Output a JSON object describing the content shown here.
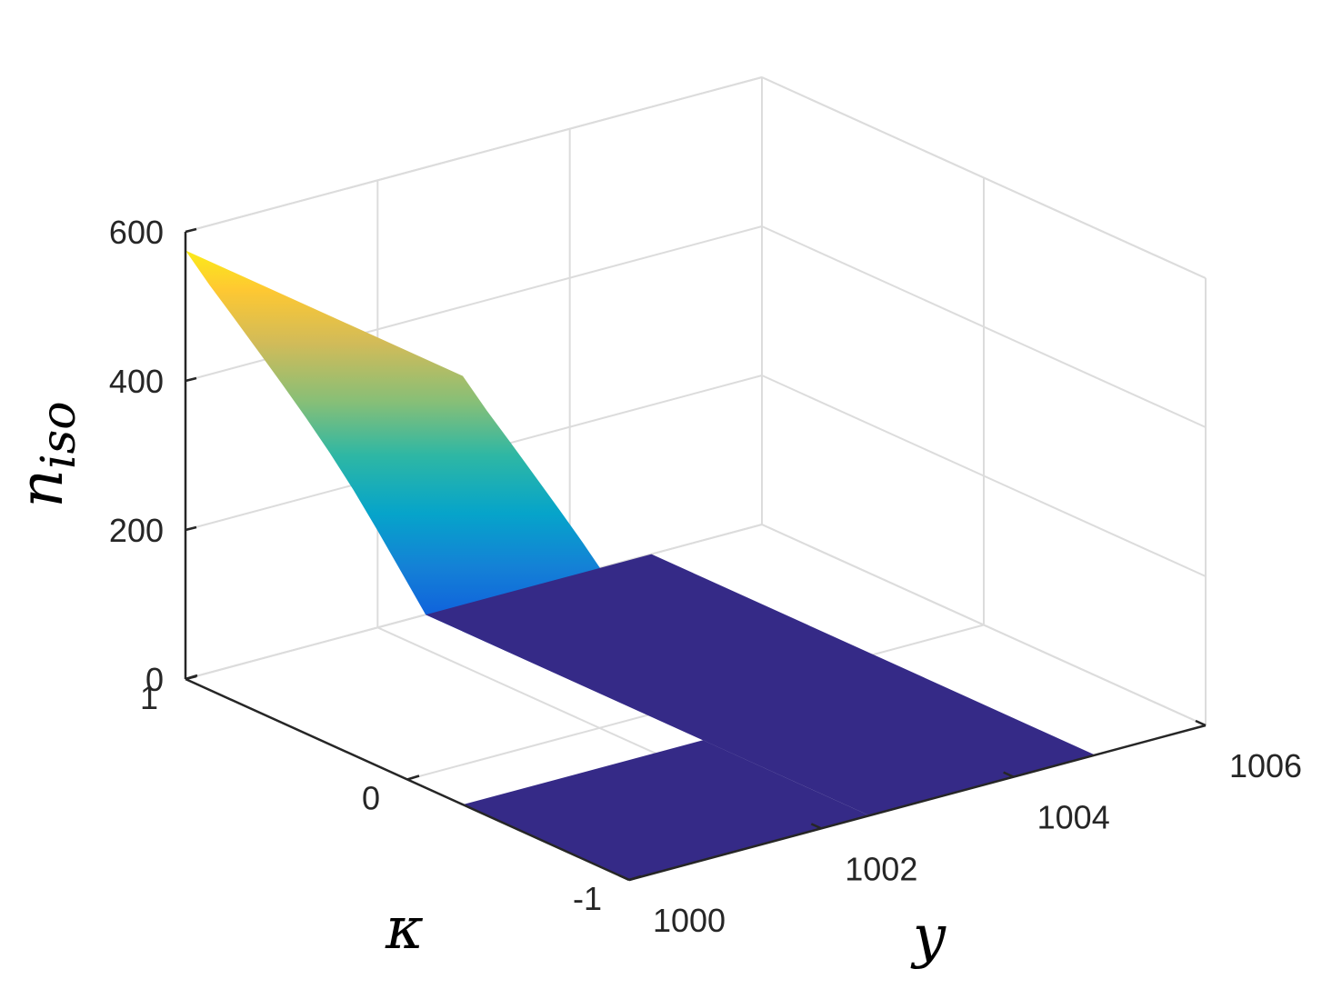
{
  "chart_data": {
    "type": "surface",
    "title": "",
    "xlabel": "y",
    "ylabel": "κ",
    "zlabel": "n_iso",
    "zlabel_main": "n",
    "zlabel_sub": "iso",
    "xlim": [
      1000,
      1006
    ],
    "ylim": [
      -1,
      1
    ],
    "zlim": [
      0,
      600
    ],
    "x_ticks": [
      "1000",
      "1002",
      "1004",
      "1006"
    ],
    "y_ticks": [
      "-1",
      "0",
      "1"
    ],
    "z_ticks": [
      "0",
      "200",
      "400",
      "600"
    ],
    "grid": true,
    "colormap": "parula",
    "surface_profile": {
      "description_units": "n_iso as a function of y (constant along κ)",
      "y": [
        1000.0,
        1000.25,
        1000.5,
        1000.75,
        1001.0,
        1001.25,
        1001.5,
        1001.75,
        1002.0,
        1002.25,
        1002.5,
        1003.0,
        1004.0,
        1005.0
      ],
      "n_iso": [
        575,
        520,
        468,
        415,
        362,
        308,
        252,
        193,
        130,
        65,
        0,
        0,
        0,
        0
      ]
    }
  }
}
